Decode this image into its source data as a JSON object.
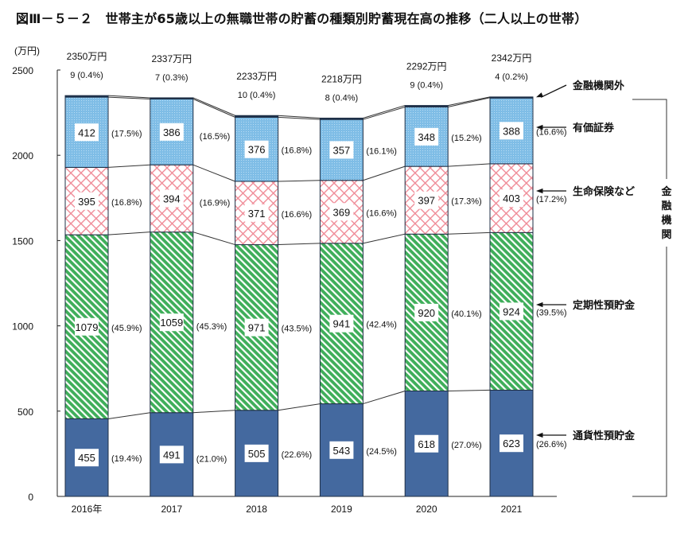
{
  "chart_data": {
    "type": "bar",
    "stacked": true,
    "title": "図Ⅲ－５－２　世帯主が65歳以上の無職世帯の貯蓄の種類別貯蓄現在高の推移（二人以上の世帯）",
    "ylabel": "(万円)",
    "ylim": [
      0,
      2500
    ],
    "yticks": [
      0,
      500,
      1000,
      1500,
      2000,
      2500
    ],
    "grid": false,
    "categories": [
      "2016年",
      "2017",
      "2018",
      "2019",
      "2020",
      "2021"
    ],
    "totals": [
      "2350万円",
      "2337万円",
      "2233万円",
      "2218万円",
      "2292万円",
      "2342万円"
    ],
    "series": [
      {
        "name": "通貨性預貯金",
        "color": "#44699f",
        "pattern": "solid",
        "values": [
          455,
          491,
          505,
          543,
          618,
          623
        ],
        "shares": [
          "(19.4%)",
          "(21.0%)",
          "(22.6%)",
          "(24.5%)",
          "(27.0%)",
          "(26.6%)"
        ]
      },
      {
        "name": "定期性預貯金",
        "color": "#3fae5a",
        "pattern": "diagonal-stripes",
        "values": [
          1079,
          1059,
          971,
          941,
          920,
          924
        ],
        "shares": [
          "(45.9%)",
          "(45.3%)",
          "(43.5%)",
          "(42.4%)",
          "(40.1%)",
          "(39.5%)"
        ]
      },
      {
        "name": "生命保険など",
        "color": "#f4a0a8",
        "pattern": "crosshatch",
        "values": [
          395,
          394,
          371,
          369,
          397,
          403
        ],
        "shares": [
          "(16.8%)",
          "(16.9%)",
          "(16.6%)",
          "(16.6%)",
          "(17.3%)",
          "(17.2%)"
        ]
      },
      {
        "name": "有価証券",
        "color": "#7fbde6",
        "pattern": "dots",
        "values": [
          412,
          386,
          376,
          357,
          348,
          388
        ],
        "shares": [
          "(17.5%)",
          "(16.5%)",
          "(16.8%)",
          "(16.1%)",
          "(15.2%)",
          "(16.6%)"
        ]
      },
      {
        "name": "金融機関外",
        "color": "#1f3350",
        "pattern": "solid",
        "values": [
          9,
          7,
          10,
          8,
          9,
          4
        ],
        "shares": [
          "(0.4%)",
          "(0.3%)",
          "(0.4%)",
          "(0.4%)",
          "(0.4%)",
          "(0.2%)"
        ]
      }
    ],
    "bracket_label": "金融機関",
    "legend_placement": "right"
  }
}
